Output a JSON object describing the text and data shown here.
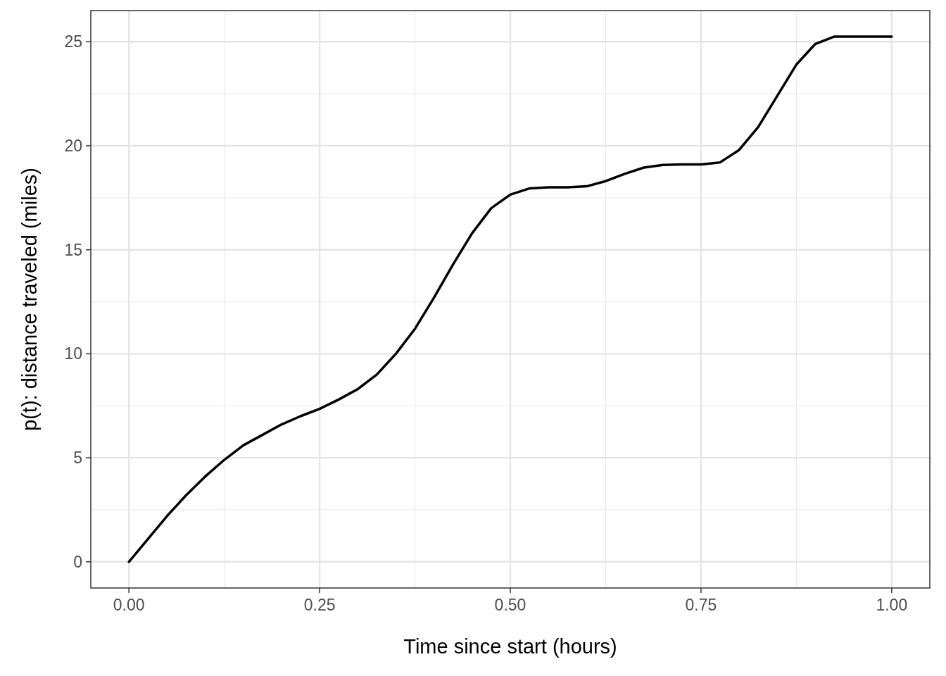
{
  "chart_data": {
    "type": "line",
    "xlabel": "Time since start (hours)",
    "ylabel": "p(t): distance traveled (miles)",
    "x": [
      0,
      0.025,
      0.05,
      0.075,
      0.1,
      0.125,
      0.15,
      0.175,
      0.2,
      0.225,
      0.25,
      0.275,
      0.3,
      0.325,
      0.35,
      0.375,
      0.4,
      0.425,
      0.45,
      0.475,
      0.5,
      0.525,
      0.55,
      0.575,
      0.6,
      0.625,
      0.65,
      0.675,
      0.7,
      0.725,
      0.75,
      0.775,
      0.8,
      0.825,
      0.85,
      0.875,
      0.9,
      0.925,
      0.95,
      1
    ],
    "series": [
      {
        "color": "#000000",
        "values": [
          0,
          1.1,
          2.2,
          3.2,
          4.1,
          4.9,
          5.6,
          6.1,
          6.6,
          7.0,
          7.35,
          7.8,
          8.3,
          9.0,
          10.0,
          11.2,
          12.7,
          14.3,
          15.8,
          17.0,
          17.65,
          17.95,
          18.0,
          18.0,
          18.05,
          18.3,
          18.65,
          18.95,
          19.08,
          19.1,
          19.1,
          19.2,
          19.8,
          20.9,
          22.4,
          23.9,
          24.9,
          25.25,
          25.25,
          25.25
        ]
      }
    ],
    "xlim": [
      -0.05,
      1.05
    ],
    "ylim": [
      -1.26,
      26.5
    ],
    "xticks": [
      {
        "value": 0,
        "label": "0.00"
      },
      {
        "value": 0.25,
        "label": "0.25"
      },
      {
        "value": 0.5,
        "label": "0.50"
      },
      {
        "value": 0.75,
        "label": "0.75"
      },
      {
        "value": 1,
        "label": "1.00"
      }
    ],
    "yticks": [
      0,
      5,
      10,
      15,
      20,
      25
    ],
    "grid": true,
    "marker": "none",
    "line_style": "solid"
  }
}
